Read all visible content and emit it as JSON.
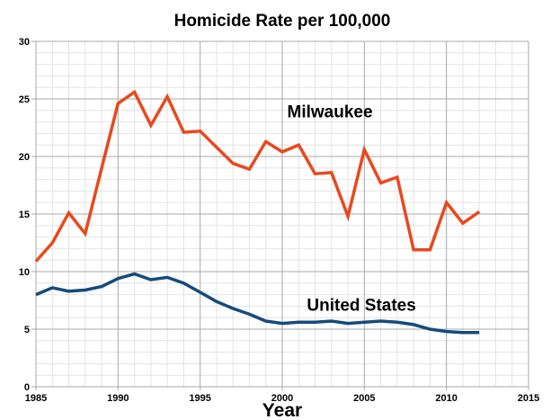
{
  "page": {
    "background_color": "#ffffff",
    "text_color": "#000000"
  },
  "chart_data": {
    "type": "line",
    "title": "Homicide Rate per 100,000",
    "xlabel": "Year",
    "ylabel": "",
    "x_range": [
      1985,
      2015
    ],
    "y_range": [
      0,
      30
    ],
    "x_major_ticks": [
      1985,
      1990,
      1995,
      2000,
      2005,
      2010,
      2015
    ],
    "y_major_ticks": [
      0,
      5,
      10,
      15,
      20,
      25,
      30
    ],
    "minor_x_step": 1,
    "minor_y_step": 1,
    "grid": {
      "show": true,
      "major_color": "#a9a9a9",
      "minor_color": "#e4e4e4"
    },
    "legend_position": "inline-annotations",
    "years": [
      1985,
      1986,
      1987,
      1988,
      1989,
      1990,
      1991,
      1992,
      1993,
      1994,
      1995,
      1996,
      1997,
      1998,
      1999,
      2000,
      2001,
      2002,
      2003,
      2004,
      2005,
      2006,
      2007,
      2008,
      2009,
      2010,
      2011,
      2012
    ],
    "series": [
      {
        "name": "Milwaukee",
        "color": "#e8491e",
        "values": [
          10.9,
          12.5,
          15.1,
          13.3,
          19.0,
          24.6,
          25.6,
          22.7,
          25.2,
          22.1,
          22.2,
          20.8,
          19.4,
          18.9,
          21.3,
          20.4,
          21.0,
          18.5,
          18.6,
          14.8,
          20.6,
          17.7,
          18.2,
          11.9,
          11.9,
          16.0,
          14.2,
          15.2
        ]
      },
      {
        "name": "United States",
        "color": "#174a7c",
        "values": [
          8.0,
          8.6,
          8.3,
          8.4,
          8.7,
          9.4,
          9.8,
          9.3,
          9.5,
          9.0,
          8.2,
          7.4,
          6.8,
          6.3,
          5.7,
          5.5,
          5.6,
          5.6,
          5.7,
          5.5,
          5.6,
          5.7,
          5.6,
          5.4,
          5.0,
          4.8,
          4.7,
          4.7
        ]
      }
    ],
    "annotations": [
      {
        "text": "Milwaukee",
        "x": 2000.3,
        "y": 23.4
      },
      {
        "text": "United States",
        "x": 2001.5,
        "y": 6.6
      }
    ]
  }
}
